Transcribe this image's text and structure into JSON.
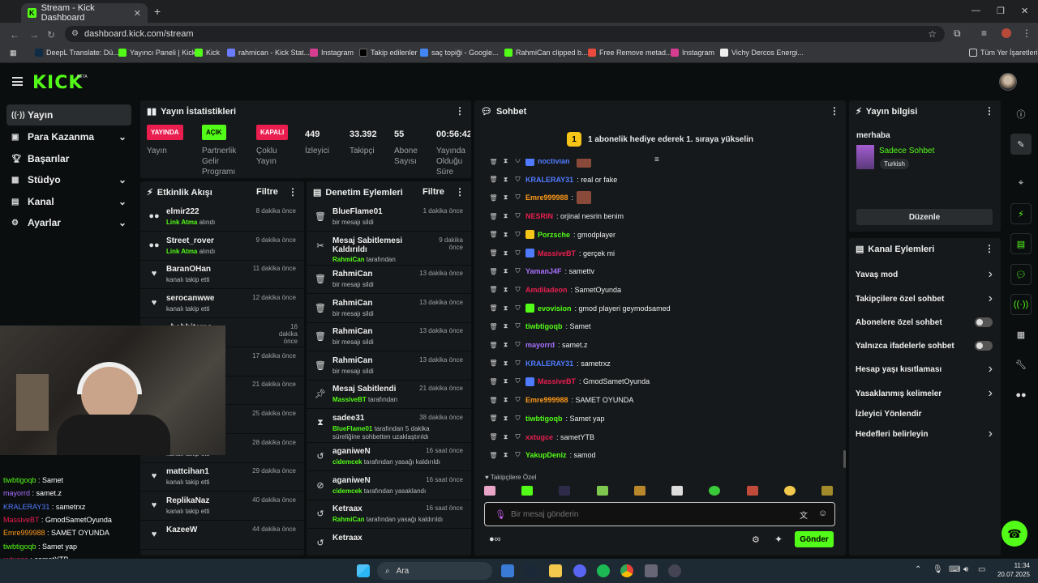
{
  "browser": {
    "tab_title": "Stream - Kick Dashboard",
    "url": "dashboard.kick.com/stream",
    "bookmarks": [
      "DeepL Translate: Dü...",
      "Yayıncı Paneli | Kick",
      "Kick",
      "rahmican - Kick Stat...",
      "Instagram",
      "Takip edilenler",
      "saç topiği - Google...",
      "RahmiCan clipped b...",
      "Free Remove metad...",
      "Instagram",
      "Vichy Dercos Energi..."
    ],
    "all_bookmarks": "Tüm Yer İşaretleri"
  },
  "kick": {
    "logo": "KICK",
    "beta": "BETA"
  },
  "sidebar": {
    "items": [
      {
        "label": "Yayın"
      },
      {
        "label": "Para Kazanma"
      },
      {
        "label": "Başarılar"
      },
      {
        "label": "Stüdyo"
      },
      {
        "label": "Kanal"
      },
      {
        "label": "Ayarlar"
      }
    ]
  },
  "stats": {
    "title": "Yayın İstatistikleri",
    "items": [
      {
        "value": "YAYINDA",
        "label": "Yayın"
      },
      {
        "value": "AÇIK",
        "label": "Partnerlik Gelir Programı"
      },
      {
        "value": "KAPALI",
        "label": "Çoklu Yayın"
      },
      {
        "value": "449",
        "label": "İzleyici"
      },
      {
        "value": "33.392",
        "label": "Takipçi"
      },
      {
        "value": "55",
        "label": "Abone Sayısı"
      },
      {
        "value": "00:56:42",
        "label": "Yayında Olduğu Süre"
      }
    ]
  },
  "activity": {
    "title": "Etkinlik Akışı",
    "filter": "Filtre",
    "rows": [
      {
        "name": "elmir222",
        "sub_strong": "Link Atma",
        "sub": " alındı",
        "time": "8 dakika önce"
      },
      {
        "name": "Street_rover",
        "sub_strong": "Link Atma",
        "sub": " alındı",
        "time": "9 dakika önce"
      },
      {
        "name": "BaranOHan",
        "sub_strong": "",
        "sub": "kanalı takip etti",
        "time": "11 dakika önce"
      },
      {
        "name": "serocanwwe",
        "sub_strong": "",
        "sub": "kanalı takip etti",
        "time": "12 dakika önce"
      },
      {
        "name": "_hobbitemo",
        "sub_strong": "",
        "sub": "",
        "time": "16 dakika önce"
      },
      {
        "name": "",
        "sub_strong": "",
        "sub": "",
        "time": "17 dakika önce"
      },
      {
        "name": "",
        "sub_strong": "",
        "sub": "",
        "time": "21 dakika önce"
      },
      {
        "name": "",
        "sub_strong": "",
        "sub": "",
        "time": "25 dakika önce"
      },
      {
        "name": "Yorss27",
        "sub_strong": "",
        "sub": "kanalı takip etti",
        "time": "28 dakika önce"
      },
      {
        "name": "mattcihan1",
        "sub_strong": "",
        "sub": "kanalı takip etti",
        "time": "29 dakika önce"
      },
      {
        "name": "ReplikaNaz",
        "sub_strong": "",
        "sub": "kanalı takip etti",
        "time": "40 dakika önce"
      },
      {
        "name": "KazeeW",
        "sub_strong": "",
        "sub": "",
        "time": "44 dakika önce"
      }
    ]
  },
  "moderation": {
    "title": "Denetim Eylemleri",
    "filter": "Filtre",
    "rows": [
      {
        "name": "BlueFlame01",
        "sub_strong": "",
        "sub": "bir mesajı sildi",
        "time": "1 dakika önce"
      },
      {
        "name": "Mesaj Sabitlemesi Kaldırıldı",
        "sub_strong": "RahmiCan",
        "sub": " tarafından",
        "time": "9 dakika önce"
      },
      {
        "name": "RahmiCan",
        "sub_strong": "",
        "sub": "bir mesajı sildi",
        "time": "13 dakika önce"
      },
      {
        "name": "RahmiCan",
        "sub_strong": "",
        "sub": "bir mesajı sildi",
        "time": "13 dakika önce"
      },
      {
        "name": "RahmiCan",
        "sub_strong": "",
        "sub": "bir mesajı sildi",
        "time": "13 dakika önce"
      },
      {
        "name": "RahmiCan",
        "sub_strong": "",
        "sub": "bir mesajı sildi",
        "time": "13 dakika önce"
      },
      {
        "name": "Mesaj Sabitlendi",
        "sub_strong": "MassiveBT",
        "sub": " tarafından",
        "time": "21 dakika önce"
      },
      {
        "name": "sadee31",
        "sub_strong": "BlueFlame01",
        "sub": " tarafından 5 dakika süreliğine sohbetten uzaklaştırıldı",
        "time": "38 dakika önce"
      },
      {
        "name": "aganiweN",
        "sub_strong": "cidemcek",
        "sub": " tarafından yasağı kaldırıldı",
        "time": "16 saat önce"
      },
      {
        "name": "aganiweN",
        "sub_strong": "cidemcek",
        "sub": " tarafından yasaklandı",
        "time": "16 saat önce"
      },
      {
        "name": "Ketraax",
        "sub_strong": "RahmiCan",
        "sub": " tarafından yasağı kaldırıldı",
        "time": "16 saat önce"
      },
      {
        "name": "Ketraax",
        "sub_strong": "",
        "sub": "",
        "time": ""
      }
    ]
  },
  "chat": {
    "title": "Sohbet",
    "banner": "1 abonelik hediye ederek 1. sıraya yükselin",
    "banner_num": "1",
    "messages": [
      {
        "user": "noctivian",
        "color": "#4f7cff",
        "msg": ""
      },
      {
        "user": "KRALERAY31",
        "color": "#4f7cff",
        "msg": ": real or fake"
      },
      {
        "user": "Emre999988",
        "color": "#ff9a1a",
        "msg": ":"
      },
      {
        "user": "NESRIN",
        "color": "#e91e4f",
        "msg": ": orjinal nesrin benim"
      },
      {
        "user": "Porzsche",
        "color": "#53fc18",
        "msg": ": gmodplayer"
      },
      {
        "user": "MassiveBT",
        "color": "#e91e4f",
        "msg": ": gerçek mi"
      },
      {
        "user": "YamanJ4F",
        "color": "#a970ff",
        "msg": ": samettv"
      },
      {
        "user": "Amdiladeon",
        "color": "#e91e4f",
        "msg": ": SametOyunda"
      },
      {
        "user": "evovision",
        "color": "#53fc18",
        "msg": ": gmod playeri geymodsamed"
      },
      {
        "user": "tiwbtigoqb",
        "color": "#53fc18",
        "msg": ": Samet"
      },
      {
        "user": "mayorrd",
        "color": "#a970ff",
        "msg": ": samet.z"
      },
      {
        "user": "KRALERAY31",
        "color": "#4f7cff",
        "msg": ": sametrxz"
      },
      {
        "user": "MassiveBT",
        "color": "#e91e4f",
        "msg": ": GmodSametOyunda"
      },
      {
        "user": "Emre999988",
        "color": "#ff9a1a",
        "msg": ": SAMET OYUNDA"
      },
      {
        "user": "tiwbtigoqb",
        "color": "#53fc18",
        "msg": ": Samet yap"
      },
      {
        "user": "xxtugce",
        "color": "#e91e4f",
        "msg": ": sametYTB"
      },
      {
        "user": "YakupDeniz",
        "color": "#53fc18",
        "msg": ": samod"
      }
    ],
    "followers_only": "Takipçilere Özel",
    "placeholder": "Bir mesaj gönderin",
    "send": "Gönder"
  },
  "stream_info": {
    "title": "Yayın bilgisi",
    "stream_title": "merhaba",
    "category": "Sadece Sohbet",
    "tag": "Turkish",
    "edit": "Düzenle"
  },
  "channel_actions": {
    "title": "Kanal Eylemleri",
    "items": [
      {
        "label": "Yavaş mod",
        "kind": "chevron"
      },
      {
        "label": "Takipçilere özel sohbet",
        "kind": "chevron"
      },
      {
        "label": "Abonelere özel sohbet",
        "kind": "toggle"
      },
      {
        "label": "Yalnızca ifadelerle sohbet",
        "kind": "toggle"
      },
      {
        "label": "Hesap yaşı kısıtlaması",
        "kind": "chevron"
      },
      {
        "label": "Yasaklanmış kelimeler",
        "kind": "chevron"
      },
      {
        "label": "İzleyici Yönlendir",
        "kind": "none"
      },
      {
        "label": "Hedefleri belirleyin",
        "kind": "chevron"
      }
    ]
  },
  "overlay_chat": [
    {
      "user": "tiwbtigoqb",
      "color": "#53fc18",
      "msg": " : Samet"
    },
    {
      "user": "mayorrd",
      "color": "#a970ff",
      "msg": " : samet.z"
    },
    {
      "user": "KRALERAY31",
      "color": "#4f7cff",
      "msg": " : sametrxz"
    },
    {
      "user": "MassiveBT",
      "color": "#e91e4f",
      "msg": " : GmodSametOyunda"
    },
    {
      "user": "Emre999988",
      "color": "#ff9a1a",
      "msg": " : SAMET OYUNDA"
    },
    {
      "user": "tiwbtigoqb",
      "color": "#53fc18",
      "msg": " : Samet yap"
    },
    {
      "user": "xxtugce",
      "color": "#e91e4f",
      "msg": " : sametYTB"
    },
    {
      "user": "YakupDeniz",
      "color": "#53fc18",
      "msg": " : samod"
    }
  ],
  "taskbar": {
    "search": "Ara",
    "time": "11:34",
    "date": "20.07.2025"
  }
}
